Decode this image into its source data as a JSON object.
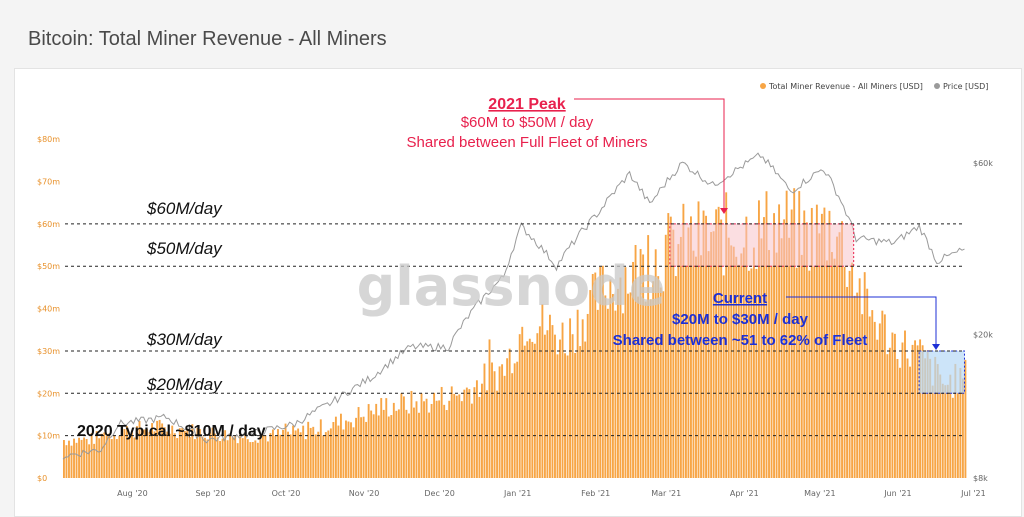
{
  "page": {
    "title": "Bitcoin: Total Miner Revenue - All Miners"
  },
  "watermark": "glassnode",
  "colors": {
    "revenue": "#f7a545",
    "price": "#9a9a9a",
    "peak_fill": "#f8c2c9",
    "peak_text": "#e8214d",
    "current_fill": "#b7d9f6",
    "current_text": "#1c2fd6",
    "guide": "#222222"
  },
  "legend": {
    "revenue_label": "Total Miner Revenue - All Miners [USD]",
    "price_label": "Price [USD]"
  },
  "guide_labels": {
    "m60": "$60M/day",
    "m50": "$50M/day",
    "m30": "$30M/day",
    "m20": "$20M/day",
    "typical": "2020 Typical ~$10M / day"
  },
  "peak_box": {
    "title": "2021 Peak",
    "line1": "$60M to $50M / day",
    "line2": "Shared between Full Fleet of Miners"
  },
  "current_box": {
    "title": "Current",
    "line1": "$20M to $30M / day",
    "line2": "Shared between ~51 to 62% of Fleet"
  },
  "chart_data": {
    "type": "bar",
    "title": "Bitcoin: Total Miner Revenue - All Miners",
    "x_ticks": [
      "Aug '20",
      "Sep '20",
      "Oct '20",
      "Nov '20",
      "Dec '20",
      "Jan '21",
      "Feb '21",
      "Mar '21",
      "Apr '21",
      "May '21",
      "Jun '21",
      "Jul '21"
    ],
    "y_ticks": [
      "$0",
      "$10m",
      "$20m",
      "$30m",
      "$40m",
      "$50m",
      "$60m",
      "$70m",
      "$80m"
    ],
    "y_unit": "millions USD",
    "ylim": [
      0,
      85
    ],
    "y2_ticks": [
      "$8k",
      "$20k",
      "$60k"
    ],
    "y2_scale": "log",
    "y2lim": [
      8000,
      80000
    ],
    "legend_position": "top-right",
    "grid": false,
    "series": [
      {
        "name": "Total Miner Revenue - All Miners [USD]",
        "type": "bar",
        "points": [
          [
            "2020-07-10",
            9
          ],
          [
            "2020-07-20",
            9
          ],
          [
            "2020-08-01",
            11
          ],
          [
            "2020-08-15",
            12
          ],
          [
            "2020-09-01",
            11
          ],
          [
            "2020-09-15",
            10
          ],
          [
            "2020-10-01",
            10
          ],
          [
            "2020-10-15",
            11
          ],
          [
            "2020-11-01",
            14
          ],
          [
            "2020-11-15",
            17
          ],
          [
            "2020-12-01",
            18
          ],
          [
            "2020-12-15",
            20
          ],
          [
            "2021-01-01",
            26
          ],
          [
            "2021-01-10",
            38
          ],
          [
            "2021-01-25",
            33
          ],
          [
            "2021-02-10",
            45
          ],
          [
            "2021-02-25",
            50
          ],
          [
            "2021-03-10",
            55
          ],
          [
            "2021-03-25",
            57
          ],
          [
            "2021-04-10",
            58
          ],
          [
            "2021-04-20",
            60
          ],
          [
            "2021-05-01",
            57
          ],
          [
            "2021-05-12",
            60
          ],
          [
            "2021-05-25",
            40
          ],
          [
            "2021-06-05",
            32
          ],
          [
            "2021-06-15",
            29
          ],
          [
            "2021-06-25",
            22
          ],
          [
            "2021-07-03",
            24
          ]
        ]
      },
      {
        "name": "Price [USD]",
        "type": "line",
        "axis": "right",
        "points": [
          [
            "2020-07-10",
            9200
          ],
          [
            "2020-07-25",
            9600
          ],
          [
            "2020-08-01",
            11300
          ],
          [
            "2020-08-20",
            11800
          ],
          [
            "2020-09-05",
            10200
          ],
          [
            "2020-09-25",
            10700
          ],
          [
            "2020-10-10",
            11300
          ],
          [
            "2020-10-25",
            13000
          ],
          [
            "2020-11-10",
            15300
          ],
          [
            "2020-11-25",
            18500
          ],
          [
            "2020-12-10",
            18500
          ],
          [
            "2020-12-20",
            23500
          ],
          [
            "2021-01-01",
            29000
          ],
          [
            "2021-01-08",
            40000
          ],
          [
            "2021-01-22",
            31000
          ],
          [
            "2021-02-08",
            44000
          ],
          [
            "2021-02-20",
            56000
          ],
          [
            "2021-02-28",
            46000
          ],
          [
            "2021-03-13",
            60000
          ],
          [
            "2021-03-25",
            52000
          ],
          [
            "2021-04-13",
            63000
          ],
          [
            "2021-04-25",
            50000
          ],
          [
            "2021-05-08",
            58000
          ],
          [
            "2021-05-15",
            47000
          ],
          [
            "2021-05-21",
            37000
          ],
          [
            "2021-06-05",
            36000
          ],
          [
            "2021-06-15",
            40000
          ],
          [
            "2021-06-22",
            32000
          ],
          [
            "2021-07-03",
            34500
          ]
        ]
      }
    ],
    "annotations": [
      {
        "label": "2021 Peak",
        "range_millions": [
          50,
          60
        ],
        "span": [
          "2021-03-08",
          "2021-05-20"
        ]
      },
      {
        "label": "Current",
        "range_millions": [
          20,
          30
        ],
        "span": [
          "2021-06-15",
          "2021-07-03"
        ]
      }
    ]
  }
}
